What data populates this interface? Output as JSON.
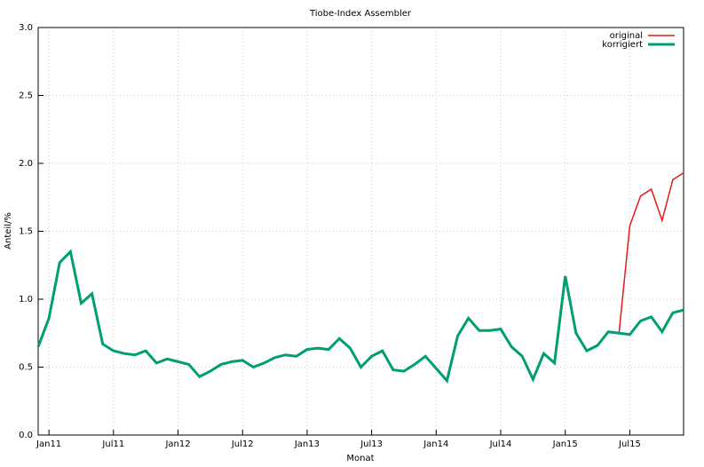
{
  "chart_data": {
    "type": "line",
    "title": "Tiobe-Index Assembler",
    "xlabel": "Monat",
    "ylabel": "Anteil/%",
    "categories": [
      null,
      "Jan11",
      null,
      null,
      null,
      null,
      null,
      "Jul11",
      null,
      null,
      null,
      null,
      null,
      "Jan12",
      null,
      null,
      null,
      null,
      null,
      "Jul12",
      null,
      null,
      null,
      null,
      null,
      "Jan13",
      null,
      null,
      null,
      null,
      null,
      "Jul13",
      null,
      null,
      null,
      null,
      null,
      "Jan14",
      null,
      null,
      null,
      null,
      null,
      "Jul14",
      null,
      null,
      null,
      null,
      null,
      "Jan15",
      null,
      null,
      null,
      null,
      null,
      "Jul15",
      null,
      null,
      null,
      null,
      null
    ],
    "series": [
      {
        "name": "original",
        "color": "#e41a1c",
        "values": [
          0.65,
          0.86,
          1.27,
          1.35,
          0.97,
          1.04,
          0.67,
          0.62,
          0.6,
          0.59,
          0.62,
          0.53,
          0.56,
          0.54,
          0.52,
          0.43,
          0.47,
          0.52,
          0.54,
          0.55,
          0.5,
          0.53,
          0.57,
          0.59,
          0.58,
          0.63,
          0.64,
          0.63,
          0.71,
          0.64,
          0.5,
          0.58,
          0.62,
          0.48,
          0.47,
          0.52,
          0.58,
          0.49,
          0.4,
          0.73,
          0.86,
          0.77,
          0.77,
          0.78,
          0.65,
          0.58,
          0.41,
          0.6,
          0.53,
          1.17,
          0.75,
          0.62,
          0.66,
          0.76,
          0.75,
          1.54,
          1.76,
          1.81,
          1.58,
          1.88,
          1.93
        ]
      },
      {
        "name": "korrigiert",
        "color": "#009e73",
        "values": [
          0.65,
          0.86,
          1.27,
          1.35,
          0.97,
          1.04,
          0.67,
          0.62,
          0.6,
          0.59,
          0.62,
          0.53,
          0.56,
          0.54,
          0.52,
          0.43,
          0.47,
          0.52,
          0.54,
          0.55,
          0.5,
          0.53,
          0.57,
          0.59,
          0.58,
          0.63,
          0.64,
          0.63,
          0.71,
          0.64,
          0.5,
          0.58,
          0.62,
          0.48,
          0.47,
          0.52,
          0.58,
          0.49,
          0.4,
          0.73,
          0.86,
          0.77,
          0.77,
          0.78,
          0.65,
          0.58,
          0.41,
          0.6,
          0.53,
          1.17,
          0.75,
          0.62,
          0.66,
          0.76,
          0.75,
          0.74,
          0.84,
          0.87,
          0.76,
          0.9,
          0.92
        ]
      }
    ],
    "ylim": [
      0,
      3
    ],
    "yticks": [
      {
        "value": 0,
        "label": "0.0"
      },
      {
        "value": 0.5,
        "label": "0.5"
      },
      {
        "value": 1,
        "label": "1.0"
      },
      {
        "value": 1.5,
        "label": "1.5"
      },
      {
        "value": 2,
        "label": "2.0"
      },
      {
        "value": 2.5,
        "label": "2.5"
      },
      {
        "value": 3,
        "label": "3.0"
      }
    ],
    "grid": true,
    "legend": "top-right"
  }
}
